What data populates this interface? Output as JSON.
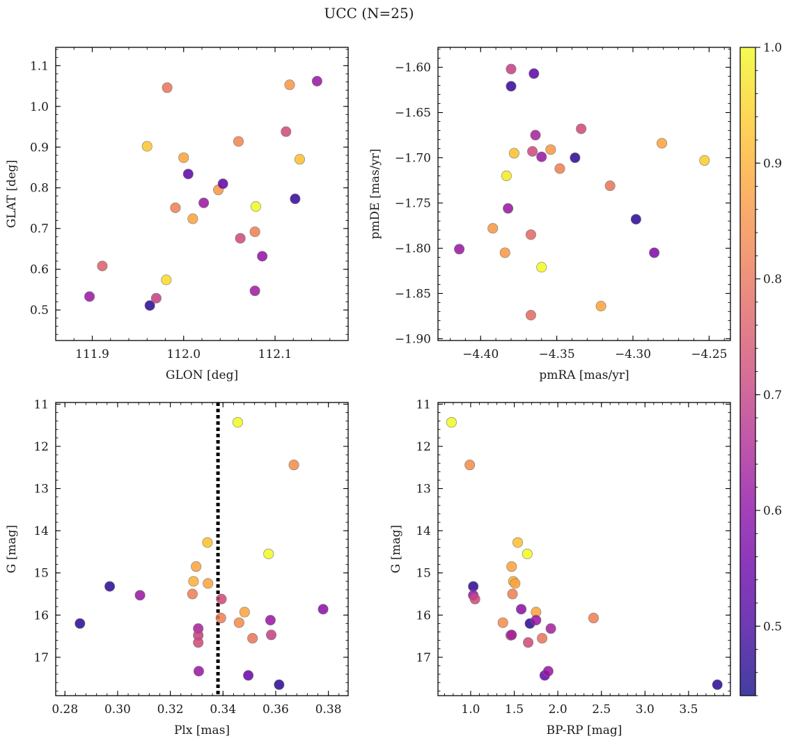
{
  "figure": {
    "title": "UCC (N=25)",
    "colorbar": {
      "vmin": 0.44,
      "vmax": 1.0,
      "ticks": [
        0.5,
        0.6,
        0.7,
        0.8,
        0.9,
        1.0
      ],
      "tick_labels": [
        "0.5",
        "0.6",
        "0.7",
        "0.8",
        "0.9",
        "1.0"
      ],
      "colormap": "plasma"
    }
  },
  "chart_data": [
    {
      "type": "scatter",
      "xlabel": "GLON [deg]",
      "ylabel": "GLAT [deg]",
      "xlim": [
        111.86,
        112.18
      ],
      "ylim": [
        0.425,
        1.145
      ],
      "y_inverted": false,
      "xticks": [
        111.9,
        112.0,
        112.1
      ],
      "xtick_labels": [
        "111.9",
        "112.0",
        "112.1"
      ],
      "yticks": [
        0.5,
        0.6,
        0.7,
        0.8,
        0.9,
        1.0,
        1.1
      ],
      "ytick_labels": [
        "0.5",
        "0.6",
        "0.7",
        "0.8",
        "0.9",
        "1.0",
        "1.1"
      ],
      "points": [
        {
          "x": 111.911,
          "y": 0.608,
          "c": 0.76
        },
        {
          "x": 111.897,
          "y": 0.533,
          "c": 0.62
        },
        {
          "x": 111.963,
          "y": 0.511,
          "c": 0.47
        },
        {
          "x": 111.97,
          "y": 0.529,
          "c": 0.7
        },
        {
          "x": 111.982,
          "y": 1.046,
          "c": 0.8
        },
        {
          "x": 111.981,
          "y": 0.574,
          "c": 0.96
        },
        {
          "x": 111.96,
          "y": 0.902,
          "c": 0.93
        },
        {
          "x": 111.991,
          "y": 0.751,
          "c": 0.82
        },
        {
          "x": 112.0,
          "y": 0.874,
          "c": 0.88
        },
        {
          "x": 112.005,
          "y": 0.834,
          "c": 0.53
        },
        {
          "x": 112.01,
          "y": 0.724,
          "c": 0.88
        },
        {
          "x": 112.022,
          "y": 0.763,
          "c": 0.62
        },
        {
          "x": 112.038,
          "y": 0.795,
          "c": 0.86
        },
        {
          "x": 112.043,
          "y": 0.81,
          "c": 0.54
        },
        {
          "x": 112.06,
          "y": 0.914,
          "c": 0.83
        },
        {
          "x": 112.062,
          "y": 0.676,
          "c": 0.72
        },
        {
          "x": 112.079,
          "y": 0.754,
          "c": 1.0
        },
        {
          "x": 112.078,
          "y": 0.692,
          "c": 0.82
        },
        {
          "x": 112.078,
          "y": 0.547,
          "c": 0.63
        },
        {
          "x": 112.086,
          "y": 0.632,
          "c": 0.61
        },
        {
          "x": 112.112,
          "y": 0.938,
          "c": 0.72
        },
        {
          "x": 112.116,
          "y": 1.053,
          "c": 0.86
        },
        {
          "x": 112.122,
          "y": 0.773,
          "c": 0.48
        },
        {
          "x": 112.127,
          "y": 0.87,
          "c": 0.92
        },
        {
          "x": 112.146,
          "y": 1.062,
          "c": 0.62
        }
      ]
    },
    {
      "type": "scatter",
      "xlabel": "pmRA [mas/yr]",
      "ylabel": "pmDE [mas/yr]",
      "xlim": [
        -4.428,
        -4.236
      ],
      "ylim": [
        -1.902,
        -1.578
      ],
      "y_inverted": false,
      "xticks": [
        -4.4,
        -4.35,
        -4.3,
        -4.25
      ],
      "xtick_labels": [
        "−4.40",
        "−4.35",
        "−4.30",
        "−4.25"
      ],
      "yticks": [
        -1.9,
        -1.85,
        -1.8,
        -1.75,
        -1.7,
        -1.65,
        -1.6
      ],
      "ytick_labels": [
        "−1.90",
        "−1.85",
        "−1.80",
        "−1.75",
        "−1.70",
        "−1.65",
        "−1.60"
      ],
      "points": [
        {
          "x": -4.414,
          "y": -1.801,
          "c": 0.62
        },
        {
          "x": -4.392,
          "y": -1.778,
          "c": 0.86
        },
        {
          "x": -4.384,
          "y": -1.805,
          "c": 0.86
        },
        {
          "x": -4.383,
          "y": -1.72,
          "c": 0.98
        },
        {
          "x": -4.382,
          "y": -1.756,
          "c": 0.62
        },
        {
          "x": -4.38,
          "y": -1.602,
          "c": 0.7
        },
        {
          "x": -4.38,
          "y": -1.621,
          "c": 0.48
        },
        {
          "x": -4.378,
          "y": -1.695,
          "c": 0.92
        },
        {
          "x": -4.367,
          "y": -1.874,
          "c": 0.78
        },
        {
          "x": -4.367,
          "y": -1.785,
          "c": 0.78
        },
        {
          "x": -4.366,
          "y": -1.693,
          "c": 0.72
        },
        {
          "x": -4.365,
          "y": -1.607,
          "c": 0.53
        },
        {
          "x": -4.364,
          "y": -1.675,
          "c": 0.64
        },
        {
          "x": -4.36,
          "y": -1.821,
          "c": 1.0
        },
        {
          "x": -4.36,
          "y": -1.699,
          "c": 0.62
        },
        {
          "x": -4.354,
          "y": -1.691,
          "c": 0.86
        },
        {
          "x": -4.348,
          "y": -1.712,
          "c": 0.82
        },
        {
          "x": -4.338,
          "y": -1.7,
          "c": 0.47
        },
        {
          "x": -4.334,
          "y": -1.668,
          "c": 0.72
        },
        {
          "x": -4.321,
          "y": -1.864,
          "c": 0.88
        },
        {
          "x": -4.315,
          "y": -1.731,
          "c": 0.8
        },
        {
          "x": -4.298,
          "y": -1.768,
          "c": 0.47
        },
        {
          "x": -4.286,
          "y": -1.805,
          "c": 0.58
        },
        {
          "x": -4.281,
          "y": -1.684,
          "c": 0.88
        },
        {
          "x": -4.253,
          "y": -1.703,
          "c": 0.94
        }
      ]
    },
    {
      "type": "scatter",
      "xlabel": "Plx [mas]",
      "ylabel": "G [mag]",
      "xlim": [
        0.2765,
        0.3875
      ],
      "ylim": [
        17.91,
        10.96
      ],
      "y_inverted": true,
      "xticks": [
        0.28,
        0.3,
        0.32,
        0.34,
        0.36,
        0.38
      ],
      "xtick_labels": [
        "0.28",
        "0.30",
        "0.32",
        "0.34",
        "0.36",
        "0.38"
      ],
      "yticks": [
        11,
        12,
        13,
        14,
        15,
        16,
        17
      ],
      "ytick_labels": [
        "11",
        "12",
        "13",
        "14",
        "15",
        "16",
        "17"
      ],
      "vline": {
        "x": 0.3381,
        "style": "dotted"
      },
      "points": [
        {
          "x": 0.2857,
          "y": 16.2,
          "c": 0.47
        },
        {
          "x": 0.297,
          "y": 15.32,
          "c": 0.47
        },
        {
          "x": 0.3085,
          "y": 15.53,
          "c": 0.62
        },
        {
          "x": 0.3284,
          "y": 15.5,
          "c": 0.82
        },
        {
          "x": 0.3288,
          "y": 15.2,
          "c": 0.9
        },
        {
          "x": 0.3298,
          "y": 14.85,
          "c": 0.88
        },
        {
          "x": 0.3306,
          "y": 16.32,
          "c": 0.64
        },
        {
          "x": 0.3306,
          "y": 16.48,
          "c": 0.7
        },
        {
          "x": 0.3306,
          "y": 16.65,
          "c": 0.72
        },
        {
          "x": 0.3308,
          "y": 17.33,
          "c": 0.62
        },
        {
          "x": 0.3341,
          "y": 14.28,
          "c": 0.92
        },
        {
          "x": 0.3343,
          "y": 15.25,
          "c": 0.88
        },
        {
          "x": 0.3394,
          "y": 15.62,
          "c": 0.72
        },
        {
          "x": 0.3392,
          "y": 16.07,
          "c": 0.82
        },
        {
          "x": 0.3456,
          "y": 11.43,
          "c": 1.0
        },
        {
          "x": 0.3461,
          "y": 16.18,
          "c": 0.84
        },
        {
          "x": 0.3482,
          "y": 15.93,
          "c": 0.88
        },
        {
          "x": 0.3496,
          "y": 17.43,
          "c": 0.55
        },
        {
          "x": 0.3512,
          "y": 16.55,
          "c": 0.8
        },
        {
          "x": 0.3573,
          "y": 14.55,
          "c": 1.0
        },
        {
          "x": 0.358,
          "y": 16.12,
          "c": 0.62
        },
        {
          "x": 0.3583,
          "y": 16.47,
          "c": 0.7
        },
        {
          "x": 0.3613,
          "y": 17.65,
          "c": 0.47
        },
        {
          "x": 0.3669,
          "y": 12.44,
          "c": 0.84
        },
        {
          "x": 0.378,
          "y": 15.86,
          "c": 0.6
        }
      ]
    },
    {
      "type": "scatter",
      "xlabel": "BP-RP [mag]",
      "ylabel": "G [mag]",
      "xlim": [
        0.625,
        3.98
      ],
      "ylim": [
        17.91,
        10.96
      ],
      "y_inverted": true,
      "xticks": [
        1.0,
        1.5,
        2.0,
        2.5,
        3.0,
        3.5
      ],
      "xtick_labels": [
        "1.0",
        "1.5",
        "2.0",
        "2.5",
        "3.0",
        "3.5"
      ],
      "yticks": [
        11,
        12,
        13,
        14,
        15,
        16,
        17
      ],
      "ytick_labels": [
        "11",
        "12",
        "13",
        "14",
        "15",
        "16",
        "17"
      ],
      "points": [
        {
          "x": 0.78,
          "y": 11.43,
          "c": 1.0
        },
        {
          "x": 0.99,
          "y": 12.44,
          "c": 0.84
        },
        {
          "x": 1.03,
          "y": 15.32,
          "c": 0.47
        },
        {
          "x": 1.03,
          "y": 15.53,
          "c": 0.62
        },
        {
          "x": 1.05,
          "y": 15.62,
          "c": 0.72
        },
        {
          "x": 1.37,
          "y": 16.18,
          "c": 0.84
        },
        {
          "x": 1.46,
          "y": 16.48,
          "c": 0.7
        },
        {
          "x": 1.47,
          "y": 16.47,
          "c": 0.64
        },
        {
          "x": 1.47,
          "y": 14.85,
          "c": 0.88
        },
        {
          "x": 1.48,
          "y": 15.5,
          "c": 0.82
        },
        {
          "x": 1.49,
          "y": 15.2,
          "c": 0.9
        },
        {
          "x": 1.51,
          "y": 15.25,
          "c": 0.88
        },
        {
          "x": 1.54,
          "y": 14.28,
          "c": 0.92
        },
        {
          "x": 1.58,
          "y": 15.86,
          "c": 0.6
        },
        {
          "x": 1.65,
          "y": 14.55,
          "c": 1.0
        },
        {
          "x": 1.66,
          "y": 16.65,
          "c": 0.72
        },
        {
          "x": 1.68,
          "y": 16.2,
          "c": 0.47
        },
        {
          "x": 1.75,
          "y": 15.93,
          "c": 0.88
        },
        {
          "x": 1.75,
          "y": 16.12,
          "c": 0.62
        },
        {
          "x": 1.82,
          "y": 16.55,
          "c": 0.8
        },
        {
          "x": 1.85,
          "y": 17.43,
          "c": 0.55
        },
        {
          "x": 1.89,
          "y": 17.33,
          "c": 0.62
        },
        {
          "x": 1.92,
          "y": 16.32,
          "c": 0.64
        },
        {
          "x": 2.41,
          "y": 16.07,
          "c": 0.82
        },
        {
          "x": 3.83,
          "y": 17.65,
          "c": 0.47
        }
      ]
    }
  ]
}
